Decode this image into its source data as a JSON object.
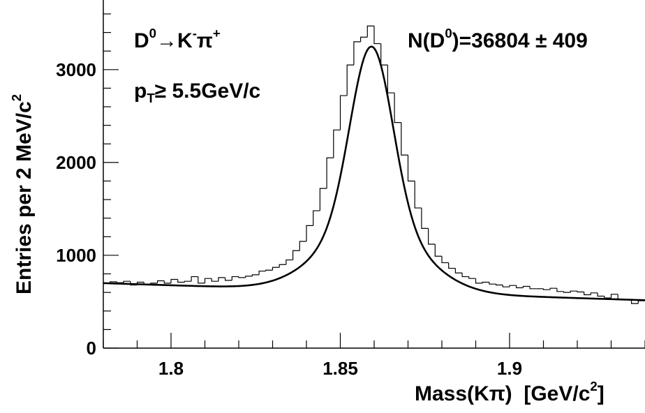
{
  "chart_data": {
    "type": "histogram with fit",
    "title": "",
    "xlabel": {
      "main": "Mass(Kπ)",
      "unit_pre": "[GeV/c",
      "unit_sup": "2",
      "unit_post": "]"
    },
    "ylabel": {
      "main": "Entries per 2 MeV/c",
      "sup": "2"
    },
    "xlim": [
      1.78,
      1.94
    ],
    "ylim": [
      0,
      3750
    ],
    "x_ticks": [
      1.8,
      1.85,
      1.9
    ],
    "x_tick_labels": [
      "1.8",
      "1.85",
      "1.9"
    ],
    "y_ticks": [
      0,
      1000,
      2000,
      3000
    ],
    "y_tick_labels": [
      "0",
      "1000",
      "2000",
      "3000"
    ],
    "bin_width": 0.002,
    "series": [
      {
        "kind": "histogram",
        "x": [
          1.781,
          1.783,
          1.785,
          1.787,
          1.789,
          1.791,
          1.793,
          1.795,
          1.797,
          1.799,
          1.801,
          1.803,
          1.805,
          1.807,
          1.809,
          1.811,
          1.813,
          1.815,
          1.817,
          1.819,
          1.821,
          1.823,
          1.825,
          1.827,
          1.829,
          1.831,
          1.833,
          1.835,
          1.837,
          1.839,
          1.841,
          1.843,
          1.845,
          1.847,
          1.849,
          1.851,
          1.853,
          1.855,
          1.857,
          1.859,
          1.861,
          1.863,
          1.865,
          1.867,
          1.869,
          1.871,
          1.873,
          1.875,
          1.877,
          1.879,
          1.881,
          1.883,
          1.885,
          1.887,
          1.889,
          1.891,
          1.893,
          1.895,
          1.897,
          1.899,
          1.901,
          1.903,
          1.905,
          1.907,
          1.909,
          1.911,
          1.913,
          1.915,
          1.917,
          1.919,
          1.921,
          1.923,
          1.925,
          1.927,
          1.929,
          1.931,
          1.933,
          1.935,
          1.937,
          1.939
        ],
        "values": [
          700,
          715,
          705,
          720,
          680,
          710,
          690,
          700,
          725,
          700,
          740,
          710,
          720,
          770,
          700,
          750,
          720,
          760,
          730,
          770,
          760,
          775,
          790,
          830,
          840,
          870,
          900,
          950,
          1050,
          1150,
          1320,
          1480,
          1720,
          2050,
          2350,
          2720,
          3050,
          3300,
          3350,
          3470,
          3280,
          3050,
          2750,
          2430,
          2080,
          1800,
          1510,
          1290,
          1120,
          990,
          920,
          860,
          810,
          770,
          750,
          700,
          710,
          690,
          680,
          660,
          675,
          650,
          665,
          640,
          640,
          630,
          645,
          610,
          600,
          615,
          605,
          575,
          595,
          560,
          540,
          580,
          520,
          520,
          480,
          510
        ]
      },
      {
        "kind": "fit",
        "name": "fit",
        "peak_mean": 1.8592,
        "peak_amplitude": 2640,
        "peak_sigma_narrow": 0.0062,
        "peak_sigma_wide": 0.014,
        "background_at_1_78": 700,
        "background_slope_per_gev": -1150
      }
    ],
    "annotations": [
      {
        "id": "decay",
        "parts": [
          "D",
          "0",
          "→K",
          "-",
          "π",
          "+"
        ]
      },
      {
        "id": "pt",
        "parts": [
          "p",
          "T",
          "≥ 5.5GeV/c"
        ]
      },
      {
        "id": "yield",
        "parts": [
          "N(D",
          "0",
          ")=36804 ± 409"
        ]
      }
    ]
  }
}
